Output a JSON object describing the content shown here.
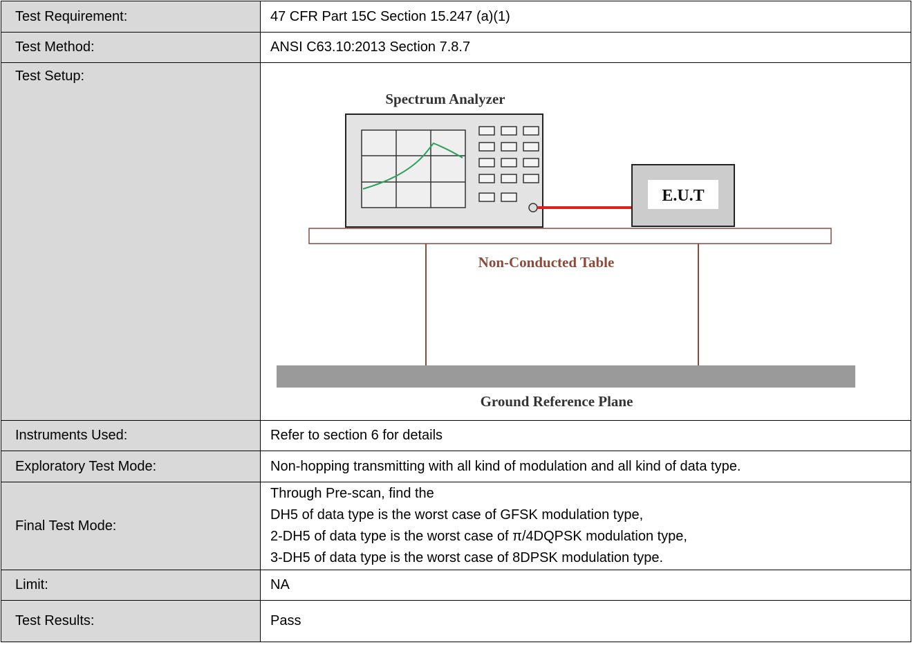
{
  "table": {
    "rows": [
      {
        "label": "Test Requirement:",
        "value": "47 CFR Part 15C Section 15.247 (a)(1)"
      },
      {
        "label": "Test Method:",
        "value": "ANSI C63.10:2013 Section 7.8.7"
      },
      {
        "label": "Test Setup:",
        "diagram": {
          "analyzer": "Spectrum Analyzer",
          "eut": "E.U.T",
          "table": "Non-Conducted Table",
          "ground": "Ground Reference Plane"
        }
      },
      {
        "label": "Instruments Used:",
        "value": "Refer to section 6 for details"
      },
      {
        "label": "Exploratory Test Mode:",
        "value": "Non-hopping transmitting with all kind of modulation and all kind of data type."
      },
      {
        "label": "Final Test Mode:",
        "lines": [
          "Through Pre-scan, find the",
          "DH5 of data type is the worst case of GFSK modulation type,",
          "2-DH5 of data type is the worst case of π/4DQPSK modulation type,",
          "3-DH5 of data type is the worst case of 8DPSK modulation type."
        ]
      },
      {
        "label": "Limit:",
        "value": "NA"
      },
      {
        "label": "Test Results:",
        "value": "Pass"
      }
    ]
  }
}
